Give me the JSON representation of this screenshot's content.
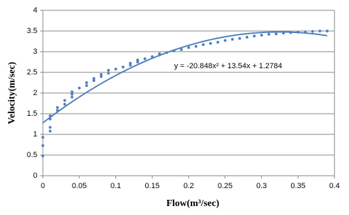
{
  "chart_data": {
    "type": "scatter",
    "x_label": "Flow(m³/sec)",
    "y_label": "Velocity(m/sec)",
    "annotation": "y = -20.848x² + 13.54x + 1.2784",
    "series": [
      {
        "color": "#4f81bd",
        "x": [
          0,
          0,
          0,
          0.01,
          0.01,
          0.01,
          0.01,
          0.02,
          0.02,
          0.03,
          0.03,
          0.04,
          0.04,
          0.04,
          0.05,
          0.06,
          0.06,
          0.07,
          0.07,
          0.08,
          0.08,
          0.09,
          0.09,
          0.1,
          0.11,
          0.12,
          0.12,
          0.13,
          0.13,
          0.14,
          0.15,
          0.16,
          0.16,
          0.17,
          0.18,
          0.19,
          0.2,
          0.21,
          0.22,
          0.23,
          0.24,
          0.25,
          0.26,
          0.27,
          0.28,
          0.29,
          0.3,
          0.31,
          0.32,
          0.33,
          0.34,
          0.35,
          0.36,
          0.37,
          0.38,
          0.39
        ],
        "values": [
          0.48,
          0.73,
          0.93,
          1.08,
          1.17,
          1.37,
          1.45,
          1.58,
          1.65,
          1.73,
          1.82,
          1.9,
          1.97,
          2.03,
          2.12,
          2.18,
          2.25,
          2.3,
          2.35,
          2.4,
          2.45,
          2.48,
          2.55,
          2.58,
          2.63,
          2.67,
          2.72,
          2.75,
          2.8,
          2.83,
          2.88,
          2.92,
          2.95,
          2.98,
          3.02,
          3.05,
          3.1,
          3.13,
          3.17,
          3.2,
          3.23,
          3.27,
          3.3,
          3.32,
          3.35,
          3.38,
          3.4,
          3.42,
          3.43,
          3.45,
          3.46,
          3.47,
          3.48,
          3.49,
          3.5,
          3.5
        ]
      }
    ],
    "trendline": {
      "type": "polynomial",
      "coefficients": [
        -20.848,
        13.54,
        1.2784
      ],
      "x_range": [
        0,
        0.39
      ]
    },
    "xlim": [
      0,
      0.4
    ],
    "xticks": [
      0,
      0.05,
      0.1,
      0.15,
      0.2,
      0.25,
      0.3,
      0.35,
      0.4
    ],
    "ylim": [
      0,
      4
    ],
    "yticks": [
      0,
      0.5,
      1,
      1.5,
      2,
      2.5,
      3,
      3.5,
      4
    ],
    "grid": true
  }
}
